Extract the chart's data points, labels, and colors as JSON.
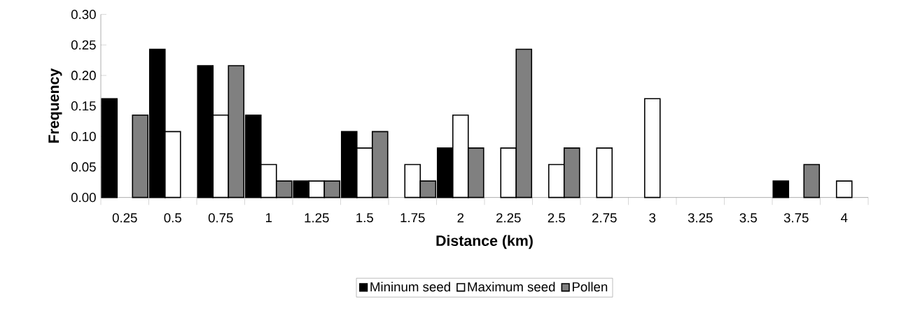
{
  "chart_data": {
    "type": "bar",
    "xlabel": "Distance (km)",
    "ylabel": "Frequency",
    "categories": [
      "0.25",
      "0.5",
      "0.75",
      "1",
      "1.25",
      "1.5",
      "1.75",
      "2",
      "2.25",
      "2.5",
      "2.75",
      "3",
      "3.25",
      "3.5",
      "3.75",
      "4"
    ],
    "series": [
      {
        "name": "Mininum seed",
        "color": "#000000",
        "values": [
          0.162,
          0.243,
          0.216,
          0.135,
          0.027,
          0.108,
          null,
          0.081,
          null,
          null,
          null,
          null,
          null,
          null,
          0.027,
          null
        ]
      },
      {
        "name": "Maximum seed",
        "color": "#ffffff",
        "values": [
          null,
          0.108,
          0.135,
          0.054,
          0.027,
          0.081,
          0.054,
          0.135,
          0.081,
          0.054,
          0.081,
          0.162,
          null,
          null,
          null,
          0.027
        ]
      },
      {
        "name": "Pollen",
        "color": "#808080",
        "values": [
          0.135,
          null,
          0.216,
          0.027,
          0.027,
          0.108,
          0.027,
          0.081,
          0.243,
          0.081,
          null,
          null,
          null,
          null,
          0.054,
          null
        ]
      }
    ],
    "ylim": [
      0,
      0.3
    ],
    "yticks": [
      {
        "value": 0,
        "label": "0.00"
      },
      {
        "value": 0.05,
        "label": "0.05"
      },
      {
        "value": 0.1,
        "label": "0.10"
      },
      {
        "value": 0.15,
        "label": "0.15"
      },
      {
        "value": 0.2,
        "label": "0.20"
      },
      {
        "value": 0.25,
        "label": "0.25"
      },
      {
        "value": 0.3,
        "label": "0.30"
      }
    ],
    "legend": "bottom",
    "grid": false
  }
}
